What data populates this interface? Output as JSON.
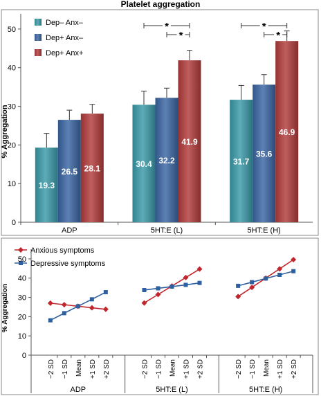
{
  "chart_data": [
    {
      "type": "bar",
      "title": "Platelet aggregation",
      "ylabel": "% Aggregation",
      "ylim": [
        0,
        55
      ],
      "yticks": [
        0,
        10,
        20,
        30,
        40,
        50
      ],
      "categories": [
        "ADP",
        "5HT:E (L)",
        "5HT:E (H)"
      ],
      "series": [
        {
          "name": "Dep– Anx–",
          "color": "#3a9aa9",
          "values": [
            19.3,
            30.4,
            31.7
          ],
          "labels": [
            "19.3",
            "30.4",
            "31.7"
          ],
          "err": [
            3.7,
            3.5,
            3.7
          ]
        },
        {
          "name": "Dep+ Anx–",
          "color": "#3a65a3",
          "values": [
            26.5,
            32.2,
            35.6
          ],
          "labels": [
            "26.5",
            "32.2",
            "35.6"
          ],
          "err": [
            2.5,
            2.5,
            2.6
          ]
        },
        {
          "name": "Dep+ Anx+",
          "color": "#b23b3b",
          "values": [
            28.1,
            41.9,
            46.9
          ],
          "labels": [
            "28.1",
            "41.9",
            "46.9"
          ],
          "err": [
            2.4,
            2.6,
            2.6
          ]
        }
      ],
      "significance": [
        {
          "category": "5HT:E (L)",
          "from_series": 0,
          "to_series": 2,
          "mark": "*"
        },
        {
          "category": "5HT:E (L)",
          "from_series": 1,
          "to_series": 2,
          "mark": "*"
        },
        {
          "category": "5HT:E (H)",
          "from_series": 0,
          "to_series": 2,
          "mark": "*"
        },
        {
          "category": "5HT:E (H)",
          "from_series": 1,
          "to_series": 2,
          "mark": "*"
        }
      ],
      "grid": false,
      "legend": "top-left"
    },
    {
      "type": "line",
      "ylabel": "% Aggregation",
      "ylim": [
        0,
        55
      ],
      "yticks": [
        0,
        10,
        20,
        30,
        40,
        50
      ],
      "groups": [
        "ADP",
        "5HT:E (L)",
        "5HT:E (H)"
      ],
      "x": [
        "−2 SD",
        "−1 SD",
        "Mean",
        "+1 SD",
        "+2 SD"
      ],
      "series": [
        {
          "name": "Anxious symptoms",
          "color": "#c0272d",
          "marker": "diamond",
          "values": [
            [
              27,
              26.2,
              25.4,
              24.6,
              23.8
            ],
            [
              27.1,
              31.5,
              35.9,
              40.3,
              44.7
            ],
            [
              30.4,
              35.2,
              40,
              44.8,
              49.6
            ]
          ]
        },
        {
          "name": "Depressive symptoms",
          "color": "#2e5f9e",
          "marker": "square",
          "values": [
            [
              18.1,
              21.8,
              25.4,
              29,
              32.7
            ],
            [
              33.8,
              34.7,
              35.6,
              36.5,
              37.5
            ],
            [
              36,
              37.9,
              39.8,
              41.7,
              43.6
            ]
          ]
        }
      ],
      "grid": false,
      "legend": "top-left"
    }
  ]
}
